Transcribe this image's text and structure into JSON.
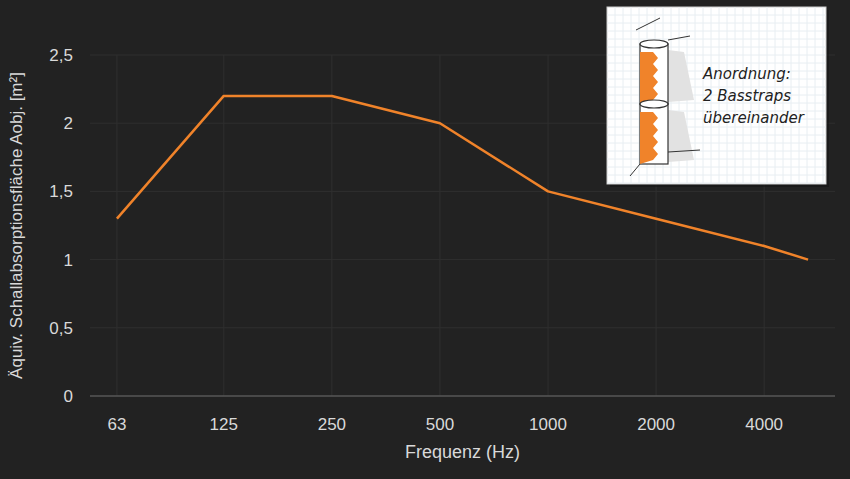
{
  "chart_data": {
    "type": "line",
    "x": [
      63,
      125,
      250,
      500,
      1000,
      2000,
      4000,
      5300
    ],
    "values": [
      1.3,
      2.2,
      2.2,
      2.0,
      1.5,
      1.3,
      1.1,
      1.0
    ],
    "color": "#f0832a",
    "xlabel": "Frequenz (Hz)",
    "ylabel": "Äquiv. Schallabsorptionsfläche Aobj. [m²]",
    "xlim": [
      53,
      6300
    ],
    "ylim": [
      0,
      2.5
    ],
    "xticks": [
      63,
      125,
      250,
      500,
      1000,
      2000,
      4000
    ],
    "yticks": [
      0,
      {
        "value": 0.5,
        "label": "0,5"
      },
      1,
      {
        "value": 1.5,
        "label": "1,5"
      },
      2,
      {
        "value": 2.5,
        "label": "2,5"
      }
    ],
    "log": "x",
    "grid": true,
    "annotations": [
      "Anordnung:",
      "2 Basstraps",
      "übereinander"
    ]
  }
}
